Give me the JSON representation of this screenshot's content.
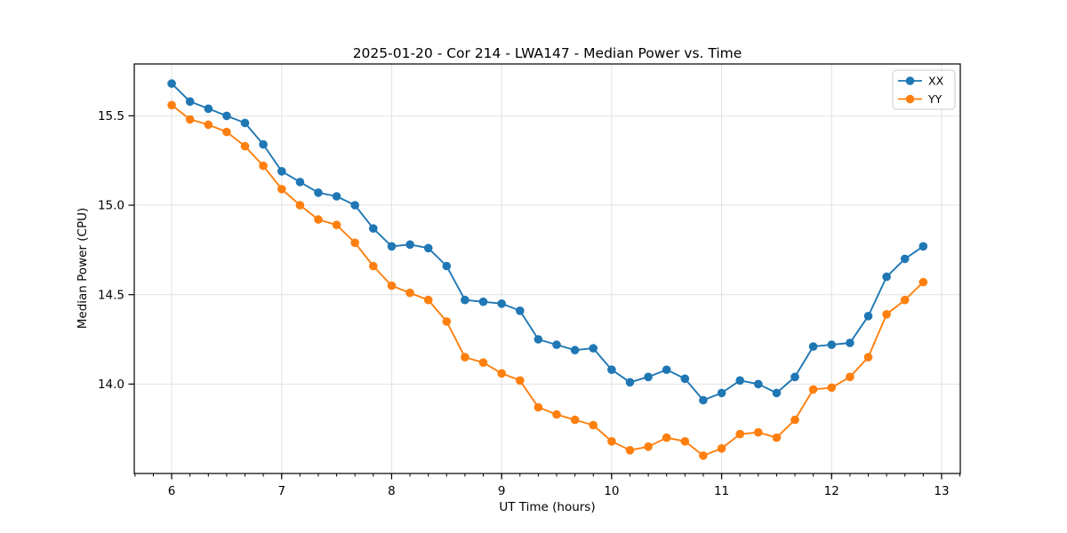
{
  "chart_data": {
    "type": "line",
    "title": "2025-01-20 - Cor 214 - LWA147 - Median Power vs. Time",
    "xlabel": "UT Time (hours)",
    "ylabel": "Median Power (CPU)",
    "xlim": [
      5.66,
      13.17
    ],
    "ylim": [
      13.5,
      15.79
    ],
    "xticks": [
      6,
      7,
      8,
      9,
      10,
      11,
      12,
      13
    ],
    "xtick_labels": [
      "6",
      "7",
      "8",
      "9",
      "10",
      "11",
      "12",
      "13"
    ],
    "yticks": [
      14.0,
      14.5,
      15.0,
      15.5
    ],
    "ytick_labels": [
      "14.0",
      "14.5",
      "15.0",
      "15.5"
    ],
    "x_minor_tick_step": 0.166667,
    "grid": "major-only",
    "grid_color": "#e2e2e2",
    "spine_color": "#000000",
    "legend_position": "upper-right",
    "x": [
      6.0,
      6.1667,
      6.3333,
      6.5,
      6.6667,
      6.8333,
      7.0,
      7.1667,
      7.3333,
      7.5,
      7.6667,
      7.8333,
      8.0,
      8.1667,
      8.3333,
      8.5,
      8.6667,
      8.8333,
      9.0,
      9.1667,
      9.3333,
      9.5,
      9.6667,
      9.8333,
      10.0,
      10.1667,
      10.3333,
      10.5,
      10.6667,
      10.8333,
      11.0,
      11.1667,
      11.3333,
      11.5,
      11.6667,
      11.8333,
      12.0,
      12.1667,
      12.3333,
      12.5,
      12.6667,
      12.8333
    ],
    "series": [
      {
        "name": "XX",
        "color": "#1f77b4",
        "values": [
          15.68,
          15.58,
          15.54,
          15.5,
          15.46,
          15.34,
          15.19,
          15.13,
          15.07,
          15.05,
          15.0,
          14.87,
          14.77,
          14.78,
          14.76,
          14.66,
          14.47,
          14.46,
          14.45,
          14.41,
          14.25,
          14.22,
          14.19,
          14.2,
          14.08,
          14.01,
          14.04,
          14.08,
          14.03,
          13.91,
          13.95,
          14.02,
          14.0,
          13.95,
          14.04,
          14.21,
          14.22,
          14.23,
          14.38,
          14.6,
          14.7,
          14.77
        ]
      },
      {
        "name": "YY",
        "color": "#ff7f0e",
        "values": [
          15.56,
          15.48,
          15.45,
          15.41,
          15.33,
          15.22,
          15.09,
          15.0,
          14.92,
          14.89,
          14.79,
          14.66,
          14.55,
          14.51,
          14.47,
          14.35,
          14.15,
          14.12,
          14.06,
          14.02,
          13.87,
          13.83,
          13.8,
          13.77,
          13.68,
          13.63,
          13.65,
          13.7,
          13.68,
          13.6,
          13.64,
          13.72,
          13.73,
          13.7,
          13.8,
          13.97,
          13.98,
          14.04,
          14.15,
          14.39,
          14.47,
          14.57
        ]
      }
    ]
  }
}
